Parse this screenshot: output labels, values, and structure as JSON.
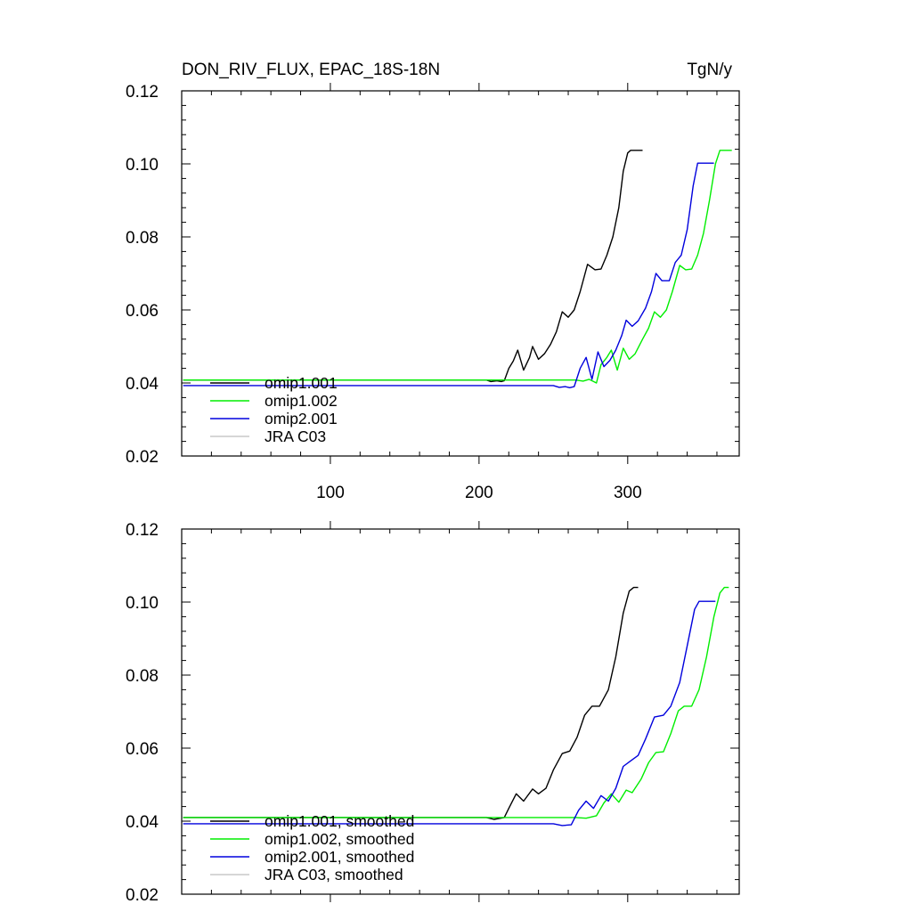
{
  "chart_data": [
    {
      "type": "line",
      "title": "DON_RIV_FLUX, EPAC_18S-18N",
      "units": "TgN/y",
      "xlim": [
        0,
        375
      ],
      "ylim": [
        0.02,
        0.12
      ],
      "x_ticks": [
        100,
        200,
        300
      ],
      "x_tick_labels": [
        "100",
        "200",
        "300"
      ],
      "y_ticks": [
        0.02,
        0.04,
        0.06,
        0.08,
        0.1,
        0.12
      ],
      "y_tick_labels": [
        "0.02",
        "0.04",
        "0.06",
        "0.08",
        "0.10",
        "0.12"
      ],
      "legend_position": "bottom-left",
      "series": [
        {
          "name": "omip1.001",
          "color": "#000000",
          "points": [
            [
              1,
              0.0408
            ],
            [
              205,
              0.0408
            ],
            [
              208,
              0.0404
            ],
            [
              212,
              0.0406
            ],
            [
              215,
              0.0404
            ],
            [
              217,
              0.0406
            ],
            [
              220,
              0.044
            ],
            [
              223,
              0.046
            ],
            [
              226,
              0.049
            ],
            [
              230,
              0.0435
            ],
            [
              234,
              0.047
            ],
            [
              236,
              0.05
            ],
            [
              240,
              0.0465
            ],
            [
              244,
              0.048
            ],
            [
              248,
              0.0505
            ],
            [
              252,
              0.054
            ],
            [
              256,
              0.0595
            ],
            [
              260,
              0.058
            ],
            [
              264,
              0.06
            ],
            [
              268,
              0.065
            ],
            [
              273,
              0.0725
            ],
            [
              278,
              0.071
            ],
            [
              282,
              0.0712
            ],
            [
              286,
              0.075
            ],
            [
              290,
              0.08
            ],
            [
              294,
              0.088
            ],
            [
              297,
              0.098
            ],
            [
              300,
              0.103
            ],
            [
              302,
              0.1037
            ],
            [
              310,
              0.1037
            ]
          ]
        },
        {
          "name": "omip1.002",
          "color": "#00ee00",
          "points": [
            [
              1,
              0.0408
            ],
            [
              265,
              0.0408
            ],
            [
              270,
              0.0405
            ],
            [
              274,
              0.041
            ],
            [
              279,
              0.04
            ],
            [
              282,
              0.045
            ],
            [
              286,
              0.047
            ],
            [
              289,
              0.049
            ],
            [
              293,
              0.0435
            ],
            [
              297,
              0.0495
            ],
            [
              301,
              0.0465
            ],
            [
              305,
              0.048
            ],
            [
              310,
              0.052
            ],
            [
              314,
              0.055
            ],
            [
              318,
              0.0595
            ],
            [
              322,
              0.058
            ],
            [
              326,
              0.06
            ],
            [
              330,
              0.065
            ],
            [
              335,
              0.0722
            ],
            [
              339,
              0.071
            ],
            [
              343,
              0.0712
            ],
            [
              347,
              0.075
            ],
            [
              351,
              0.081
            ],
            [
              355,
              0.09
            ],
            [
              359,
              0.1
            ],
            [
              362,
              0.1037
            ],
            [
              370,
              0.1037
            ]
          ]
        },
        {
          "name": "omip2.001",
          "color": "#0000dd",
          "points": [
            [
              1,
              0.0393
            ],
            [
              250,
              0.0393
            ],
            [
              254,
              0.0388
            ],
            [
              258,
              0.039
            ],
            [
              261,
              0.0387
            ],
            [
              264,
              0.039
            ],
            [
              268,
              0.044
            ],
            [
              272,
              0.047
            ],
            [
              276,
              0.041
            ],
            [
              280,
              0.0485
            ],
            [
              284,
              0.0445
            ],
            [
              288,
              0.0462
            ],
            [
              292,
              0.049
            ],
            [
              296,
              0.053
            ],
            [
              299,
              0.0572
            ],
            [
              303,
              0.0555
            ],
            [
              307,
              0.057
            ],
            [
              312,
              0.0605
            ],
            [
              316,
              0.065
            ],
            [
              319,
              0.07
            ],
            [
              323,
              0.068
            ],
            [
              328,
              0.068
            ],
            [
              332,
              0.073
            ],
            [
              336,
              0.075
            ],
            [
              340,
              0.082
            ],
            [
              344,
              0.094
            ],
            [
              347,
              0.1002
            ],
            [
              355,
              0.1002
            ],
            [
              358,
              0.1002
            ]
          ]
        },
        {
          "name": "JRA C03",
          "color": "#c8c8c8",
          "points": []
        }
      ]
    },
    {
      "type": "line",
      "title": "",
      "units": "",
      "xlim": [
        0,
        375
      ],
      "ylim": [
        0.02,
        0.12
      ],
      "x_ticks": [
        100,
        200,
        300
      ],
      "x_tick_labels": [],
      "y_ticks": [
        0.02,
        0.04,
        0.06,
        0.08,
        0.1,
        0.12
      ],
      "y_tick_labels": [
        "0.02",
        "0.04",
        "0.06",
        "0.08",
        "0.10",
        "0.12"
      ],
      "legend_position": "bottom-left",
      "series": [
        {
          "name": "omip1.001, smoothed",
          "color": "#000000",
          "points": [
            [
              1,
              0.041
            ],
            [
              205,
              0.041
            ],
            [
              210,
              0.0405
            ],
            [
              217,
              0.041
            ],
            [
              220,
              0.0435
            ],
            [
              225,
              0.0475
            ],
            [
              230,
              0.0455
            ],
            [
              236,
              0.0488
            ],
            [
              240,
              0.0475
            ],
            [
              245,
              0.049
            ],
            [
              250,
              0.054
            ],
            [
              256,
              0.0585
            ],
            [
              261,
              0.0592
            ],
            [
              266,
              0.063
            ],
            [
              271,
              0.069
            ],
            [
              276,
              0.0715
            ],
            [
              281,
              0.0715
            ],
            [
              287,
              0.076
            ],
            [
              292,
              0.085
            ],
            [
              297,
              0.097
            ],
            [
              301,
              0.103
            ],
            [
              304,
              0.104
            ],
            [
              307,
              0.104
            ]
          ]
        },
        {
          "name": "omip1.002, smoothed",
          "color": "#00ee00",
          "points": [
            [
              1,
              0.041
            ],
            [
              265,
              0.041
            ],
            [
              272,
              0.0408
            ],
            [
              279,
              0.0415
            ],
            [
              284,
              0.045
            ],
            [
              289,
              0.0475
            ],
            [
              294,
              0.0452
            ],
            [
              299,
              0.0485
            ],
            [
              303,
              0.0478
            ],
            [
              309,
              0.0515
            ],
            [
              314,
              0.056
            ],
            [
              319,
              0.0588
            ],
            [
              324,
              0.059
            ],
            [
              329,
              0.064
            ],
            [
              334,
              0.0702
            ],
            [
              338,
              0.0715
            ],
            [
              343,
              0.0715
            ],
            [
              348,
              0.076
            ],
            [
              353,
              0.085
            ],
            [
              358,
              0.096
            ],
            [
              362,
              0.1025
            ],
            [
              365,
              0.104
            ],
            [
              368,
              0.104
            ]
          ]
        },
        {
          "name": "omip2.001, smoothed",
          "color": "#0000dd",
          "points": [
            [
              1,
              0.0393
            ],
            [
              250,
              0.0393
            ],
            [
              256,
              0.0388
            ],
            [
              262,
              0.039
            ],
            [
              267,
              0.043
            ],
            [
              272,
              0.0455
            ],
            [
              277,
              0.0435
            ],
            [
              282,
              0.047
            ],
            [
              287,
              0.0455
            ],
            [
              292,
              0.049
            ],
            [
              297,
              0.055
            ],
            [
              302,
              0.0565
            ],
            [
              307,
              0.058
            ],
            [
              312,
              0.0625
            ],
            [
              318,
              0.0685
            ],
            [
              324,
              0.069
            ],
            [
              329,
              0.0715
            ],
            [
              335,
              0.078
            ],
            [
              340,
              0.088
            ],
            [
              345,
              0.098
            ],
            [
              348,
              0.1002
            ],
            [
              357,
              0.1002
            ],
            [
              359,
              0.1002
            ]
          ]
        },
        {
          "name": "JRA C03, smoothed",
          "color": "#c8c8c8",
          "points": []
        }
      ]
    }
  ]
}
